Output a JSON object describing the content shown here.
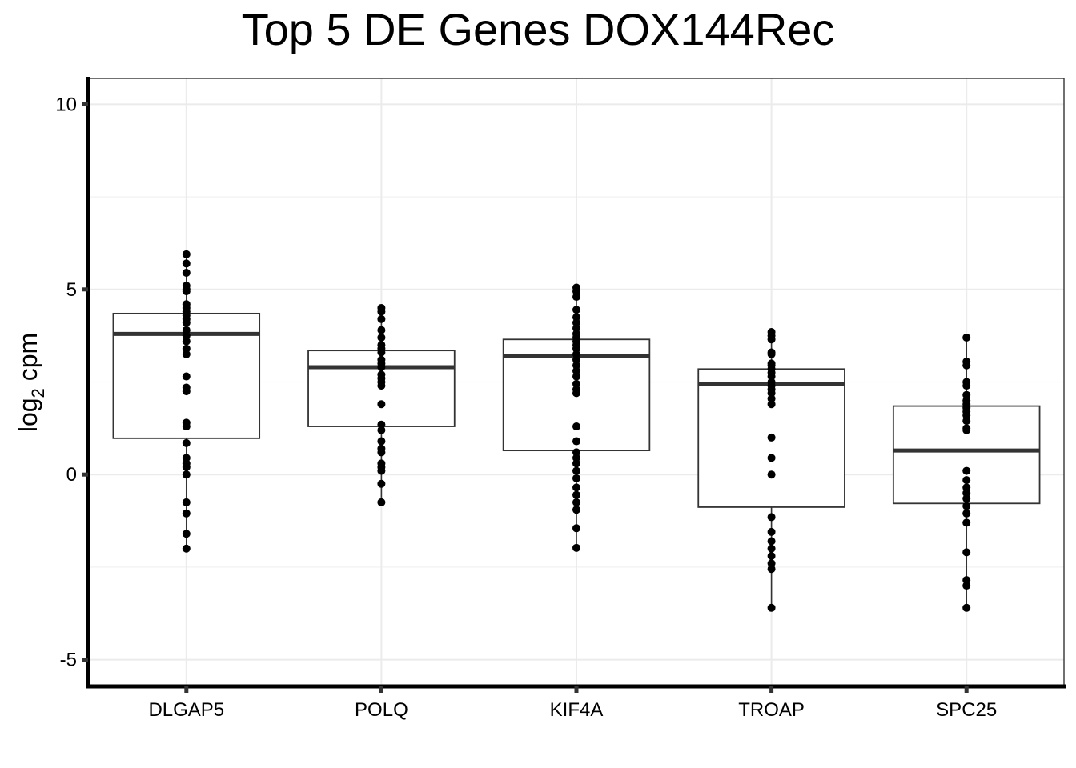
{
  "chart_data": {
    "type": "box",
    "title": "Top 5 DE Genes DOX144Rec",
    "xlabel": "",
    "ylabel": "log",
    "ylabel_subscript": "2",
    "ylabel_suffix": " cpm",
    "ylim": [
      -5.7,
      10.7
    ],
    "yticks": [
      -5,
      0,
      5,
      10
    ],
    "ytick_labels": [
      "-5",
      "0",
      "5",
      "10"
    ],
    "grid": true,
    "categories": [
      "DLGAP5",
      "POLQ",
      "KIF4A",
      "TROAP",
      "SPC25"
    ],
    "boxes": [
      {
        "name": "DLGAP5",
        "q1": 0.98,
        "median": 3.8,
        "q3": 4.35,
        "whisker_low": -2.0,
        "whisker_high": 5.95
      },
      {
        "name": "POLQ",
        "q1": 1.3,
        "median": 2.9,
        "q3": 3.35,
        "whisker_low": -0.75,
        "whisker_high": 4.5
      },
      {
        "name": "KIF4A",
        "q1": 0.65,
        "median": 3.2,
        "q3": 3.65,
        "whisker_low": -1.98,
        "whisker_high": 5.05
      },
      {
        "name": "TROAP",
        "q1": -0.88,
        "median": 2.45,
        "q3": 2.85,
        "whisker_low": -3.6,
        "whisker_high": 3.85
      },
      {
        "name": "SPC25",
        "q1": -0.78,
        "median": 0.65,
        "q3": 1.85,
        "whisker_low": -3.6,
        "whisker_high": 3.7
      }
    ],
    "points": [
      [
        5.95,
        5.7,
        5.45,
        5.1,
        5.0,
        4.95,
        4.6,
        4.5,
        4.4,
        4.3,
        4.2,
        4.1,
        3.9,
        3.75,
        3.6,
        3.4,
        3.25,
        2.65,
        2.35,
        2.25,
        1.4,
        1.3,
        0.85,
        0.45,
        0.3,
        0.2,
        0.0,
        -0.75,
        -1.05,
        -1.6,
        -2.0
      ],
      [
        4.5,
        4.4,
        4.2,
        3.9,
        3.7,
        3.5,
        3.4,
        3.3,
        3.1,
        3.0,
        2.9,
        2.7,
        2.6,
        2.5,
        2.4,
        1.9,
        1.35,
        1.2,
        0.9,
        0.7,
        0.6,
        0.3,
        0.2,
        0.1,
        -0.25,
        -0.75
      ],
      [
        5.05,
        4.95,
        4.8,
        4.45,
        4.25,
        4.1,
        3.95,
        3.8,
        3.7,
        3.6,
        3.5,
        3.4,
        3.25,
        3.1,
        2.95,
        2.8,
        2.65,
        2.45,
        2.3,
        2.2,
        1.3,
        0.9,
        0.6,
        0.45,
        0.3,
        0.1,
        -0.1,
        -0.35,
        -0.55,
        -0.75,
        -0.95,
        -1.45,
        -1.98
      ],
      [
        3.85,
        3.75,
        3.65,
        3.3,
        3.25,
        3.0,
        2.95,
        2.85,
        2.75,
        2.65,
        2.5,
        2.4,
        2.3,
        2.2,
        2.05,
        1.9,
        1.0,
        0.45,
        0.0,
        -1.15,
        -1.55,
        -1.8,
        -2.0,
        -2.2,
        -2.4,
        -2.55,
        -3.6
      ],
      [
        3.7,
        3.05,
        2.95,
        2.5,
        2.4,
        2.15,
        2.0,
        1.9,
        1.8,
        1.7,
        1.6,
        1.45,
        1.25,
        1.2,
        0.1,
        -0.15,
        -0.35,
        -0.5,
        -0.65,
        -0.85,
        -1.05,
        -1.3,
        -2.1,
        -2.85,
        -3.0,
        -3.6
      ]
    ]
  }
}
